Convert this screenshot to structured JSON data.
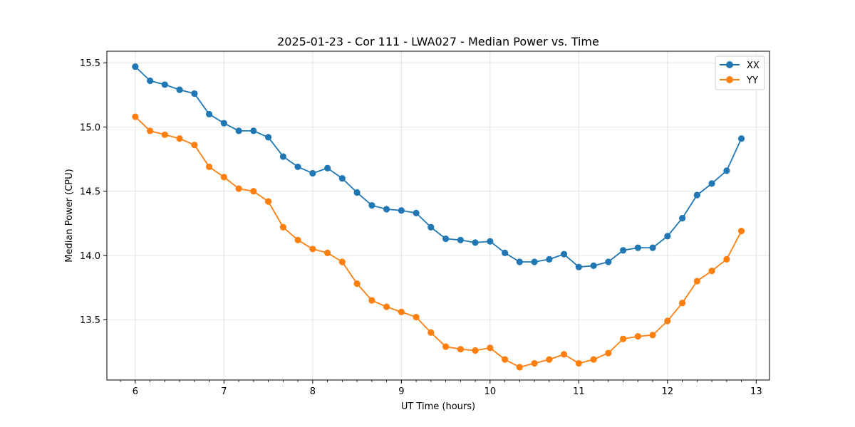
{
  "chart_data": {
    "type": "line",
    "title": "2025-01-23 - Cor 111 - LWA027 - Median Power vs. Time",
    "xlabel": "UT Time (hours)",
    "ylabel": "Median Power (CPU)",
    "xlim": [
      5.68,
      13.15
    ],
    "ylim": [
      13.03,
      15.59
    ],
    "xticks": [
      6,
      7,
      8,
      9,
      10,
      11,
      12,
      13
    ],
    "yticks": [
      13.5,
      14.0,
      14.5,
      15.0,
      15.5
    ],
    "xtick_labels": [
      "6",
      "7",
      "8",
      "9",
      "10",
      "11",
      "12",
      "13"
    ],
    "ytick_labels": [
      "13.5",
      "14.0",
      "14.5",
      "15.0",
      "15.5"
    ],
    "grid": true,
    "legend_position": "top-right",
    "x": [
      6.0,
      6.167,
      6.333,
      6.5,
      6.667,
      6.833,
      7.0,
      7.167,
      7.333,
      7.5,
      7.667,
      7.833,
      8.0,
      8.167,
      8.333,
      8.5,
      8.667,
      8.833,
      9.0,
      9.167,
      9.333,
      9.5,
      9.667,
      9.833,
      10.0,
      10.167,
      10.333,
      10.5,
      10.667,
      10.833,
      11.0,
      11.167,
      11.333,
      11.5,
      11.667,
      11.833,
      12.0,
      12.167,
      12.333,
      12.5,
      12.667,
      12.833
    ],
    "series": [
      {
        "name": "XX",
        "color": "#1f77b4",
        "values": [
          15.47,
          15.36,
          15.33,
          15.29,
          15.26,
          15.1,
          15.03,
          14.97,
          14.97,
          14.92,
          14.77,
          14.69,
          14.64,
          14.68,
          14.6,
          14.49,
          14.39,
          14.36,
          14.35,
          14.33,
          14.22,
          14.13,
          14.12,
          14.1,
          14.11,
          14.02,
          13.95,
          13.95,
          13.97,
          14.01,
          13.91,
          13.92,
          13.95,
          14.04,
          14.06,
          14.06,
          14.15,
          14.29,
          14.47,
          14.56,
          14.66,
          14.91
        ]
      },
      {
        "name": "YY",
        "color": "#ff7f0e",
        "values": [
          15.08,
          14.97,
          14.94,
          14.91,
          14.86,
          14.69,
          14.61,
          14.52,
          14.5,
          14.42,
          14.22,
          14.12,
          14.05,
          14.02,
          13.95,
          13.78,
          13.65,
          13.6,
          13.56,
          13.52,
          13.4,
          13.29,
          13.27,
          13.26,
          13.28,
          13.19,
          13.13,
          13.16,
          13.19,
          13.23,
          13.16,
          13.19,
          13.24,
          13.35,
          13.37,
          13.38,
          13.49,
          13.63,
          13.8,
          13.88,
          13.97,
          14.19
        ]
      }
    ]
  }
}
